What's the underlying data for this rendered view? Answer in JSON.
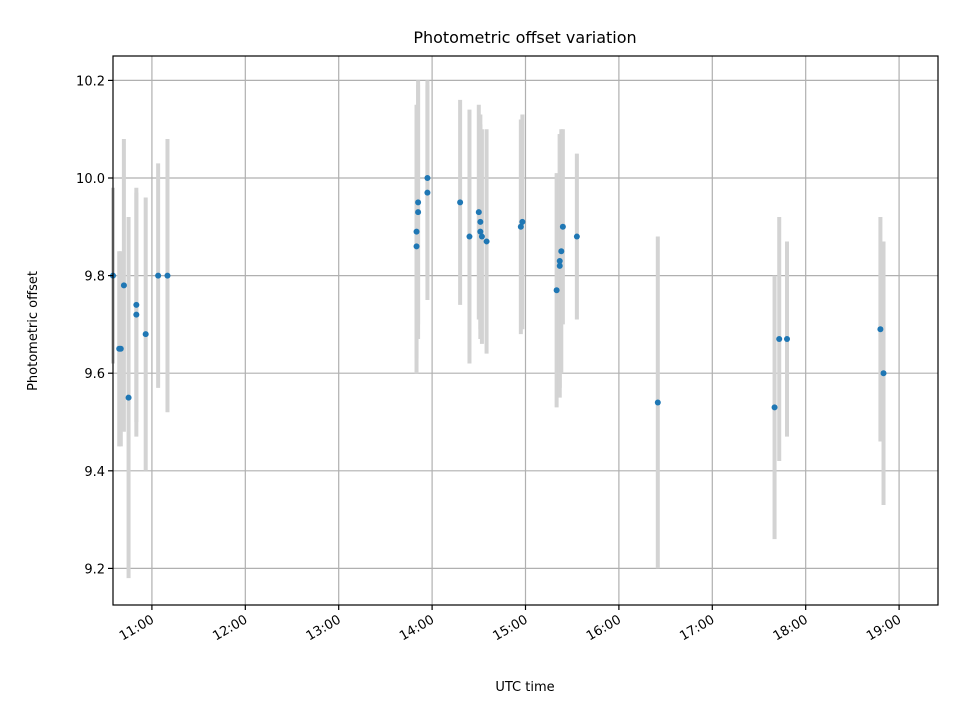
{
  "chart_data": {
    "type": "scatter",
    "title": "Photometric offset variation",
    "xlabel": "UTC time",
    "ylabel": "Photometric offset",
    "x_ticks": [
      "11:00",
      "12:00",
      "13:00",
      "14:00",
      "15:00",
      "16:00",
      "17:00",
      "18:00",
      "19:00"
    ],
    "y_ticks": [
      "9.2",
      "9.4",
      "9.6",
      "9.8",
      "10.0",
      "10.2"
    ],
    "xlim": [
      "10:35",
      "19:25"
    ],
    "ylim": [
      9.125,
      10.25
    ],
    "grid": true,
    "marker_color": "#1f77b4",
    "errorbar_color": "#d3d3d3",
    "points": [
      {
        "t": "10:35",
        "y": 9.8,
        "err": 0.18
      },
      {
        "t": "10:39",
        "y": 9.65,
        "err": 0.2
      },
      {
        "t": "10:40",
        "y": 9.65,
        "err": 0.2
      },
      {
        "t": "10:42",
        "y": 9.78,
        "err": 0.3
      },
      {
        "t": "10:45",
        "y": 9.55,
        "err": 0.37
      },
      {
        "t": "10:50",
        "y": 9.74,
        "err": 0.24
      },
      {
        "t": "10:50",
        "y": 9.72,
        "err": 0.25
      },
      {
        "t": "10:56",
        "y": 9.68,
        "err": 0.28
      },
      {
        "t": "11:04",
        "y": 9.8,
        "err": 0.23
      },
      {
        "t": "11:10",
        "y": 9.8,
        "err": 0.28
      },
      {
        "t": "13:50",
        "y": 9.86,
        "err": 0.26
      },
      {
        "t": "13:50",
        "y": 9.89,
        "err": 0.26
      },
      {
        "t": "13:51",
        "y": 9.93,
        "err": 0.26
      },
      {
        "t": "13:51",
        "y": 9.95,
        "err": 0.25
      },
      {
        "t": "13:57",
        "y": 9.97,
        "err": 0.22
      },
      {
        "t": "13:57",
        "y": 10.0,
        "err": 0.2
      },
      {
        "t": "14:18",
        "y": 9.95,
        "err": 0.21
      },
      {
        "t": "14:24",
        "y": 9.88,
        "err": 0.26
      },
      {
        "t": "14:30",
        "y": 9.93,
        "err": 0.22
      },
      {
        "t": "14:31",
        "y": 9.91,
        "err": 0.22
      },
      {
        "t": "14:31",
        "y": 9.89,
        "err": 0.22
      },
      {
        "t": "14:32",
        "y": 9.88,
        "err": 0.22
      },
      {
        "t": "14:35",
        "y": 9.87,
        "err": 0.23
      },
      {
        "t": "14:57",
        "y": 9.9,
        "err": 0.22
      },
      {
        "t": "14:58",
        "y": 9.91,
        "err": 0.22
      },
      {
        "t": "15:20",
        "y": 9.77,
        "err": 0.24
      },
      {
        "t": "15:22",
        "y": 9.82,
        "err": 0.27
      },
      {
        "t": "15:22",
        "y": 9.83,
        "err": 0.26
      },
      {
        "t": "15:23",
        "y": 9.85,
        "err": 0.25
      },
      {
        "t": "15:24",
        "y": 9.9,
        "err": 0.2
      },
      {
        "t": "15:33",
        "y": 9.88,
        "err": 0.17
      },
      {
        "t": "16:25",
        "y": 9.54,
        "err": 0.34
      },
      {
        "t": "17:40",
        "y": 9.53,
        "err": 0.27
      },
      {
        "t": "17:43",
        "y": 9.67,
        "err": 0.25
      },
      {
        "t": "17:48",
        "y": 9.67,
        "err": 0.2
      },
      {
        "t": "18:48",
        "y": 9.69,
        "err": 0.23
      },
      {
        "t": "18:50",
        "y": 9.6,
        "err": 0.27
      }
    ]
  }
}
